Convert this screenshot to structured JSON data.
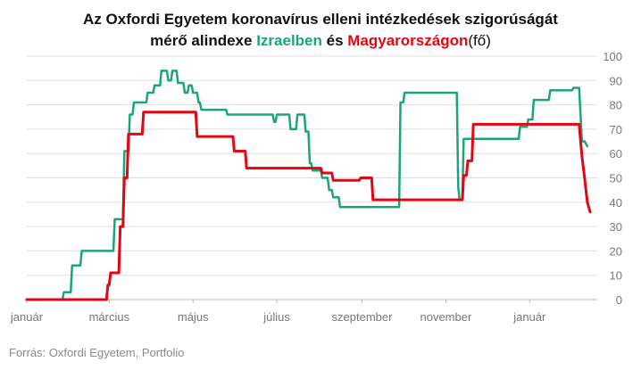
{
  "title": {
    "line1": "Az Oxfordi Egyetem koronavírus elleni intézkedések szigorúságát",
    "line2_prefix": "mérő alindexe ",
    "israel_word": "Izraelben",
    "connector": " és ",
    "hungary_word": "Magyarországon",
    "suffix": "(fő)"
  },
  "source": "Forrás: Oxfordi Egyetem, Portfolio",
  "colors": {
    "israel": "#1aa57a",
    "hungary": "#e30613",
    "grid": "#dddddd",
    "text": "#111111",
    "axis_text": "#777777"
  },
  "chart_data": {
    "type": "line",
    "title": "Az Oxfordi Egyetem koronavírus elleni intézkedések szigorúságát mérő alindexe Izraelben és Magyarországon(fő)",
    "x_unit": "day (2020-01-01 = 0)",
    "x_ticks": [
      {
        "day": 0,
        "label": "január"
      },
      {
        "day": 60,
        "label": "március"
      },
      {
        "day": 121,
        "label": "május"
      },
      {
        "day": 182,
        "label": "július"
      },
      {
        "day": 244,
        "label": "szeptember"
      },
      {
        "day": 305,
        "label": "november"
      },
      {
        "day": 366,
        "label": "január"
      }
    ],
    "xlim": [
      0,
      410
    ],
    "ylim": [
      0,
      100
    ],
    "y_ticks": [
      0,
      10,
      20,
      30,
      40,
      50,
      60,
      70,
      80,
      90,
      100
    ],
    "y_axis_side": "right",
    "grid": "horizontal",
    "series": [
      {
        "name": "Izraelben",
        "color_key": "israel",
        "points": [
          [
            0,
            0
          ],
          [
            26,
            0
          ],
          [
            27,
            3
          ],
          [
            32,
            3
          ],
          [
            33,
            14
          ],
          [
            39,
            14
          ],
          [
            40,
            20
          ],
          [
            63,
            20
          ],
          [
            64,
            33
          ],
          [
            70,
            33
          ],
          [
            71,
            61
          ],
          [
            74,
            61
          ],
          [
            75,
            76
          ],
          [
            77,
            76
          ],
          [
            78,
            81
          ],
          [
            87,
            81
          ],
          [
            88,
            85
          ],
          [
            92,
            85
          ],
          [
            93,
            88
          ],
          [
            97,
            88
          ],
          [
            98,
            94
          ],
          [
            102,
            94
          ],
          [
            103,
            90
          ],
          [
            105,
            90
          ],
          [
            106,
            94
          ],
          [
            109,
            94
          ],
          [
            110,
            89
          ],
          [
            114,
            89
          ],
          [
            115,
            85
          ],
          [
            117,
            85
          ],
          [
            118,
            88
          ],
          [
            120,
            88
          ],
          [
            121,
            85
          ],
          [
            124,
            85
          ],
          [
            125,
            81
          ],
          [
            126,
            81
          ],
          [
            127,
            78
          ],
          [
            145,
            78
          ],
          [
            146,
            76
          ],
          [
            179,
            76
          ],
          [
            180,
            73
          ],
          [
            181,
            73
          ],
          [
            182,
            76
          ],
          [
            191,
            76
          ],
          [
            192,
            70
          ],
          [
            196,
            70
          ],
          [
            197,
            76
          ],
          [
            202,
            76
          ],
          [
            203,
            69
          ],
          [
            205,
            69
          ],
          [
            206,
            56
          ],
          [
            207,
            56
          ],
          [
            208,
            53
          ],
          [
            214,
            53
          ],
          [
            215,
            50
          ],
          [
            219,
            50
          ],
          [
            220,
            45
          ],
          [
            222,
            45
          ],
          [
            223,
            42
          ],
          [
            227,
            42
          ],
          [
            228,
            38
          ],
          [
            271,
            38
          ],
          [
            272,
            81
          ],
          [
            274,
            81
          ],
          [
            275,
            85
          ],
          [
            313,
            85
          ],
          [
            314,
            46
          ],
          [
            315,
            41
          ],
          [
            317,
            41
          ],
          [
            318,
            66
          ],
          [
            358,
            66
          ],
          [
            359,
            71
          ],
          [
            364,
            71
          ],
          [
            365,
            74
          ],
          [
            368,
            74
          ],
          [
            369,
            82
          ],
          [
            380,
            82
          ],
          [
            381,
            86
          ],
          [
            397,
            86
          ],
          [
            398,
            87
          ],
          [
            402,
            87
          ],
          [
            404,
            65
          ],
          [
            406,
            65
          ],
          [
            408,
            63
          ]
        ]
      },
      {
        "name": "Magyarországon",
        "color_key": "hungary",
        "points": [
          [
            0,
            0
          ],
          [
            58,
            0
          ],
          [
            59,
            6
          ],
          [
            60,
            6
          ],
          [
            61,
            11
          ],
          [
            67,
            11
          ],
          [
            68,
            30
          ],
          [
            70,
            30
          ],
          [
            71,
            50
          ],
          [
            73,
            50
          ],
          [
            74,
            68
          ],
          [
            84,
            68
          ],
          [
            85,
            77
          ],
          [
            123,
            77
          ],
          [
            124,
            67
          ],
          [
            150,
            67
          ],
          [
            151,
            61
          ],
          [
            159,
            61
          ],
          [
            160,
            54
          ],
          [
            214,
            54
          ],
          [
            215,
            52
          ],
          [
            222,
            52
          ],
          [
            223,
            49
          ],
          [
            242,
            49
          ],
          [
            243,
            50
          ],
          [
            251,
            50
          ],
          [
            252,
            41
          ],
          [
            317,
            41
          ],
          [
            318,
            51
          ],
          [
            320,
            51
          ],
          [
            321,
            57
          ],
          [
            324,
            57
          ],
          [
            325,
            72
          ],
          [
            402,
            72
          ],
          [
            404,
            59
          ],
          [
            406,
            50
          ],
          [
            408,
            40
          ],
          [
            410,
            36
          ]
        ]
      }
    ]
  }
}
